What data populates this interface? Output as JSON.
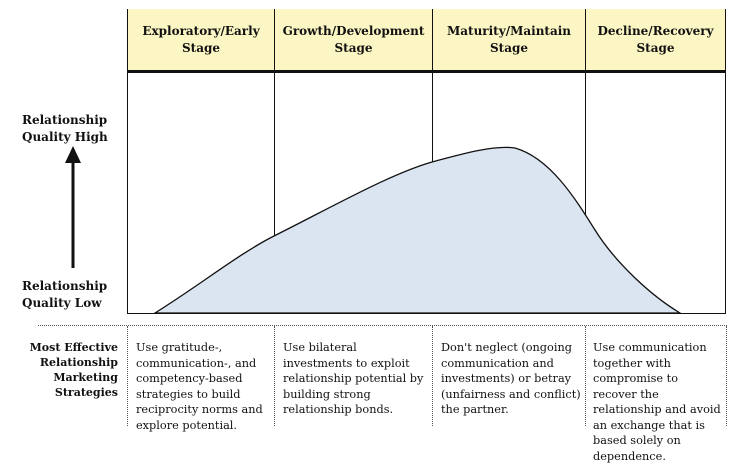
{
  "stages": [
    {
      "title": "Exploratory/Early Stage"
    },
    {
      "title": "Growth/Development Stage"
    },
    {
      "title": "Maturity/Maintain Stage"
    },
    {
      "title": "Decline/Recovery Stage"
    }
  ],
  "y_axis": {
    "high_label": "Relationship Quality High",
    "low_label": "Relationship Quality Low"
  },
  "strategies": {
    "title": "Most Effective Relationship Marketing Strategies",
    "items": [
      "Use gratitude-, communication-, and competency-based strategies to build reciprocity norms and explore potential.",
      "Use bilateral investments to exploit relationship potential by building strong relationship bonds.",
      "Don't neglect (ongoing communication and investments) or betray (unfairness and conflict) the partner.",
      "Use communication together with compromise to recover the relationship and avoid an exchange that is based solely on dependence."
    ]
  },
  "colors": {
    "header_fill": "#fbf6c4",
    "curve_fill": "#dbe5f1"
  }
}
